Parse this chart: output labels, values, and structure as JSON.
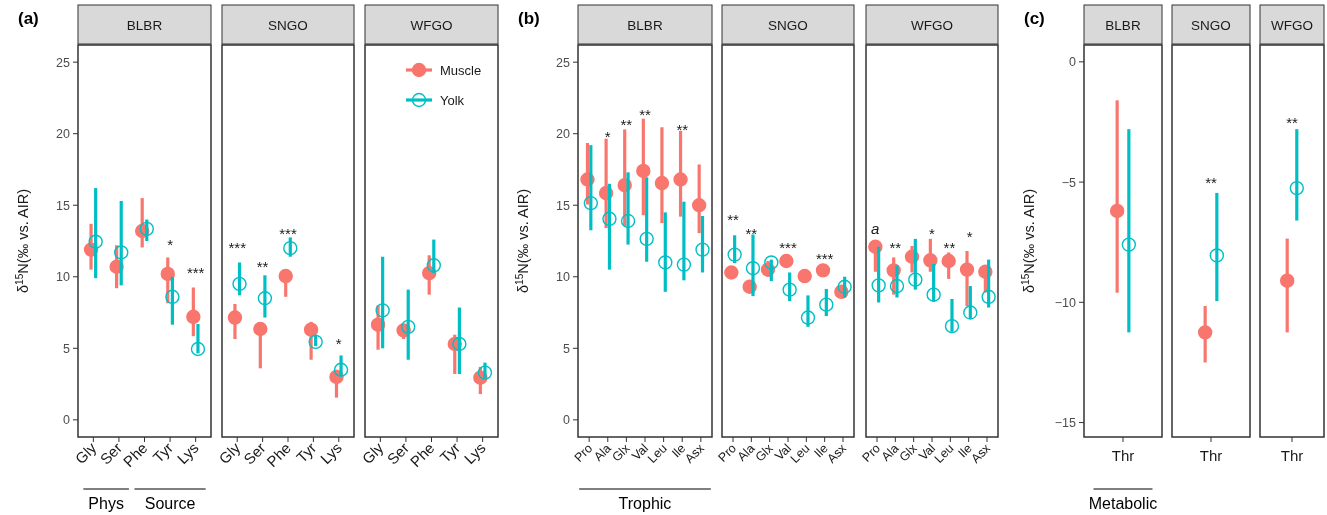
{
  "chart_data": [
    {
      "type": "scatter",
      "title": "BLBR",
      "ylabel": "δ$^{15}$N(‰ vs. AIR)",
      "categories": [
        "Gly",
        "Ser",
        "Phe",
        "Tyr",
        "Lys"
      ],
      "ylim": [
        -1.2,
        26.2
      ],
      "yticks": [
        0,
        5,
        10,
        15,
        20,
        25
      ],
      "marker": "circle",
      "series": [
        {
          "color": "#f8766d",
          "values": [
            11.9,
            10.7,
            13.2,
            10.2,
            7.2
          ],
          "errors": [
            [
              10.5,
              13.7
            ],
            [
              9.2,
              12.2
            ],
            [
              12.05,
              15.5
            ],
            [
              8.15,
              11.35
            ],
            [
              5.85,
              9.25
            ]
          ]
        },
        {
          "color": "#00bfc4",
          "values": [
            12.45,
            11.7,
            13.35,
            8.6,
            4.95
          ],
          "errors": [
            [
              9.9,
              16.2
            ],
            [
              9.4,
              15.3
            ],
            [
              12.5,
              14.0
            ],
            [
              6.65,
              10.0
            ],
            [
              4.65,
              6.7
            ]
          ]
        }
      ],
      "annotations": [
        "(a)",
        "Phys",
        "Source",
        "*",
        "***"
      ]
    },
    {
      "type": "scatter",
      "title": "SNGO",
      "categories": [
        "Gly",
        "Ser",
        "Phe",
        "Tyr",
        "Lys"
      ],
      "ylim": [
        -1.2,
        26.2
      ],
      "tick_labels": "x",
      "marker": "circle",
      "series": [
        {
          "color": "#f8766d",
          "values": [
            7.15,
            6.35,
            10.05,
            6.3,
            3.0
          ],
          "errors": [
            [
              5.65,
              8.1
            ],
            [
              3.6,
              6.8
            ],
            [
              8.6,
              10.5
            ],
            [
              4.2,
              6.85
            ],
            [
              1.55,
              3.5
            ]
          ]
        },
        {
          "color": "#00bfc4",
          "values": [
            9.5,
            8.5,
            12.0,
            5.45,
            3.5
          ],
          "errors": [
            [
              8.7,
              11.0
            ],
            [
              7.15,
              10.1
            ],
            [
              11.4,
              12.75
            ],
            [
              5.15,
              5.95
            ],
            [
              3.05,
              4.5
            ]
          ]
        }
      ],
      "annotations": [
        "***",
        "**",
        "***",
        "*"
      ]
    },
    {
      "type": "scatter",
      "title": "WFGO",
      "categories": [
        "Gly",
        "Ser",
        "Phe",
        "Tyr",
        "Lys"
      ],
      "ylim": [
        -1.2,
        26.2
      ],
      "tick_labels": "x",
      "marker": "circle",
      "legend": "top right",
      "series": [
        {
          "name": "Muscle",
          "color": "#f8766d",
          "values": [
            6.65,
            6.25,
            10.25,
            5.3,
            2.95
          ],
          "errors": [
            [
              4.9,
              8.0
            ],
            [
              5.65,
              6.55
            ],
            [
              8.75,
              11.5
            ],
            [
              3.2,
              5.95
            ],
            [
              1.8,
              3.7
            ]
          ]
        },
        {
          "name": "Yolk",
          "color": "#00bfc4",
          "values": [
            7.65,
            6.5,
            10.8,
            5.3,
            3.3
          ],
          "errors": [
            [
              5.0,
              11.4
            ],
            [
              4.2,
              9.1
            ],
            [
              10.25,
              12.6
            ],
            [
              3.2,
              7.85
            ],
            [
              2.9,
              4.0
            ]
          ]
        }
      ]
    },
    {
      "type": "scatter",
      "title": "BLBR",
      "ylabel": "δ$^{15}$N(‰ vs. AIR)",
      "categories": [
        "Pro",
        "Ala",
        "Glx",
        "Val",
        "Leu",
        "Ile",
        "Asx"
      ],
      "ylim": [
        -1.2,
        26.2
      ],
      "yticks": [
        0,
        5,
        10,
        15,
        20,
        25
      ],
      "marker": "circle",
      "series": [
        {
          "color": "#f8766d",
          "values": [
            16.8,
            15.85,
            16.4,
            17.4,
            16.55,
            16.8,
            15.0
          ],
          "errors": [
            [
              15.05,
              19.35
            ],
            [
              13.4,
              19.65
            ],
            [
              13.55,
              20.3
            ],
            [
              14.3,
              21.05
            ],
            [
              13.75,
              20.45
            ],
            [
              14.2,
              20.2
            ],
            [
              13.05,
              17.85
            ]
          ]
        },
        {
          "color": "#00bfc4",
          "values": [
            15.15,
            14.05,
            13.9,
            12.65,
            11.0,
            10.85,
            11.9
          ],
          "errors": [
            [
              13.25,
              19.2
            ],
            [
              10.5,
              16.5
            ],
            [
              12.25,
              17.3
            ],
            [
              11.05,
              16.95
            ],
            [
              8.95,
              14.5
            ],
            [
              9.75,
              15.25
            ],
            [
              10.3,
              14.25
            ]
          ]
        }
      ],
      "annotations": [
        "(b)",
        "Trophic",
        "*",
        "**",
        "**",
        "**"
      ]
    },
    {
      "type": "scatter",
      "title": "SNGO",
      "categories": [
        "Pro",
        "Ala",
        "Glx",
        "Val",
        "Leu",
        "Ile",
        "Asx"
      ],
      "ylim": [
        -1.2,
        26.2
      ],
      "tick_labels": "x",
      "marker": "circle",
      "series": [
        {
          "color": "#f8766d",
          "values": [
            10.3,
            9.3,
            10.5,
            11.1,
            10.05,
            10.45,
            8.95
          ],
          "errors": [
            null,
            null,
            [
              10.0,
              11.1
            ],
            null,
            null,
            [
              10.2,
              10.65
            ],
            null
          ]
        },
        {
          "color": "#00bfc4",
          "values": [
            11.55,
            10.6,
            11.0,
            9.1,
            7.15,
            8.05,
            9.3
          ],
          "errors": [
            [
              10.95,
              12.9
            ],
            [
              8.65,
              12.95
            ],
            [
              9.7,
              11.2
            ],
            [
              8.3,
              10.3
            ],
            [
              6.5,
              8.7
            ],
            [
              7.25,
              9.15
            ],
            [
              8.55,
              10.0
            ]
          ]
        }
      ],
      "annotations": [
        "**",
        "**",
        "***",
        "***"
      ]
    },
    {
      "type": "scatter",
      "title": "WFGO",
      "categories": [
        "Pro",
        "Ala",
        "Glx",
        "Val",
        "Leu",
        "Ile",
        "Asx"
      ],
      "ylim": [
        -1.2,
        26.2
      ],
      "tick_labels": "x",
      "marker": "circle",
      "series": [
        {
          "color": "#f8766d",
          "values": [
            12.1,
            10.45,
            11.4,
            11.15,
            11.1,
            10.5,
            10.35
          ],
          "errors": [
            [
              10.35,
              12.15
            ],
            [
              8.75,
              11.35
            ],
            [
              10.3,
              12.15
            ],
            [
              10.35,
              12.65
            ],
            [
              9.85,
              11.7
            ],
            [
              7.95,
              11.8
            ],
            [
              8.9,
              10.8
            ]
          ]
        },
        {
          "color": "#00bfc4",
          "values": [
            9.4,
            9.35,
            9.8,
            8.75,
            6.55,
            7.5,
            8.6
          ],
          "errors": [
            [
              8.2,
              12.1
            ],
            [
              8.55,
              10.8
            ],
            [
              9.1,
              12.65
            ],
            [
              8.25,
              10.9
            ],
            [
              6.15,
              8.45
            ],
            [
              7.05,
              9.35
            ],
            [
              7.85,
              11.2
            ]
          ]
        }
      ],
      "annotations": [
        "a",
        "**",
        "*",
        "**",
        "*"
      ]
    },
    {
      "type": "scatter",
      "title": "BLBR",
      "ylabel": "δ$^{15}$N(‰ vs. AIR)",
      "categories": [
        "Thr"
      ],
      "ylim": [
        -15.6,
        0.7
      ],
      "yticks": [
        {
          "value": 0,
          "label": "0"
        },
        {
          "value": -5,
          "label": "−5"
        },
        {
          "value": -10,
          "label": "−10"
        },
        {
          "value": -15,
          "label": "−15"
        }
      ],
      "marker": "circle",
      "series": [
        {
          "color": "#f8766d",
          "values": [
            -6.2
          ],
          "errors": [
            [
              -9.6,
              -1.6
            ]
          ]
        },
        {
          "color": "#00bfc4",
          "values": [
            -7.6
          ],
          "errors": [
            [
              -11.25,
              -2.8
            ]
          ]
        }
      ],
      "annotations": [
        "(c)",
        "Metabolic"
      ]
    },
    {
      "type": "scatter",
      "title": "SNGO",
      "categories": [
        "Thr"
      ],
      "ylim": [
        -15.6,
        0.7
      ],
      "tick_labels": "x",
      "marker": "circle",
      "series": [
        {
          "color": "#f8766d",
          "values": [
            -11.25
          ],
          "errors": [
            [
              -12.5,
              -10.15
            ]
          ]
        },
        {
          "color": "#00bfc4",
          "values": [
            -8.05
          ],
          "errors": [
            [
              -9.95,
              -5.45
            ]
          ]
        }
      ],
      "annotations": [
        "**"
      ]
    },
    {
      "type": "scatter",
      "title": "WFGO",
      "categories": [
        "Thr"
      ],
      "ylim": [
        -15.6,
        0.7
      ],
      "tick_labels": "x",
      "marker": "circle",
      "series": [
        {
          "color": "#f8766d",
          "values": [
            -9.1
          ],
          "errors": [
            [
              -11.25,
              -7.35
            ]
          ]
        },
        {
          "color": "#00bfc4",
          "values": [
            -5.25
          ],
          "errors": [
            [
              -6.6,
              -2.8
            ]
          ]
        }
      ],
      "annotations": [
        "**"
      ]
    }
  ]
}
